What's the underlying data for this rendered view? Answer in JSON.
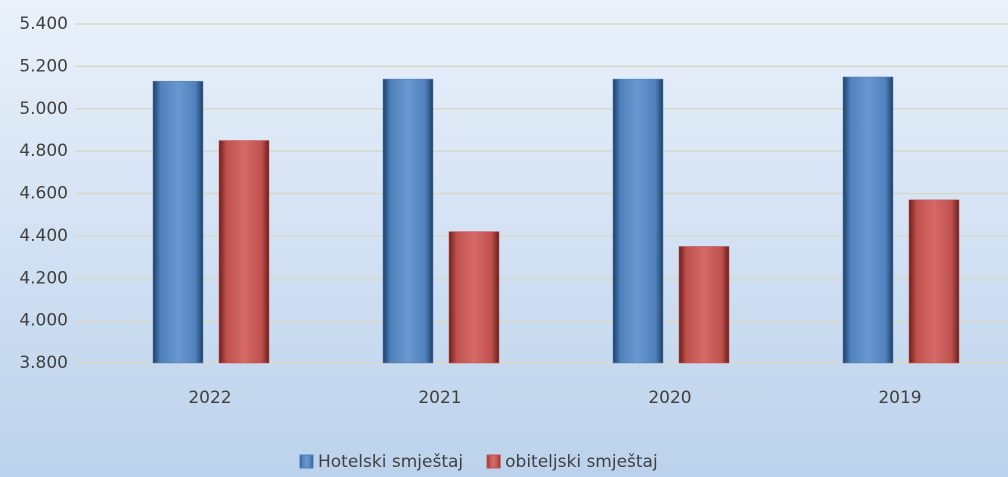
{
  "chart_data": {
    "type": "bar",
    "categories": [
      "2022",
      "2021",
      "2020",
      "2019"
    ],
    "series": [
      {
        "name": "Hotelski smještaj",
        "color": "#4f81bd",
        "values": [
          5130,
          5140,
          5140,
          5150
        ]
      },
      {
        "name": "obiteljski smještaj",
        "color": "#c0504d",
        "values": [
          4850,
          4420,
          4350,
          4570
        ]
      }
    ],
    "ylim": [
      3800,
      5400
    ],
    "yticks": [
      {
        "value": 3800,
        "label": "3.800"
      },
      {
        "value": 4000,
        "label": "4.000"
      },
      {
        "value": 4200,
        "label": "4.200"
      },
      {
        "value": 4400,
        "label": "4.400"
      },
      {
        "value": 4600,
        "label": "4.600"
      },
      {
        "value": 4800,
        "label": "4.800"
      },
      {
        "value": 5000,
        "label": "5.000"
      },
      {
        "value": 5200,
        "label": "5.200"
      },
      {
        "value": 5400,
        "label": "5.400"
      }
    ],
    "grid": true,
    "legend": "bottom"
  }
}
